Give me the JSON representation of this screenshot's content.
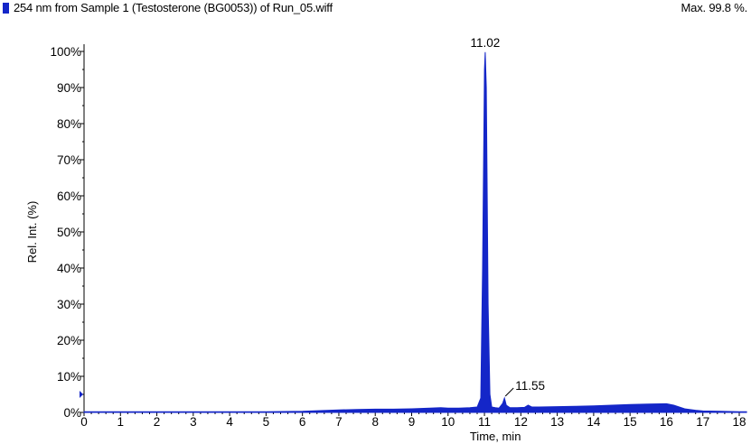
{
  "header": {
    "title": "254 nm from Sample 1 (Testosterone (BG0053)) of Run_05.wiff",
    "max": "Max. 99.8 %."
  },
  "colors": {
    "trace": "#1426c8",
    "axis": "#000000",
    "swatch": "#1426c8"
  },
  "chart_data": {
    "type": "line",
    "title": "254 nm from Sample 1 (Testosterone (BG0053)) of Run_05.wiff",
    "xlabel": "Time, min",
    "ylabel": "Rel. Int. (%)",
    "xlim": [
      0,
      18.2
    ],
    "ylim": [
      0,
      100
    ],
    "xticks": [
      0,
      1,
      2,
      3,
      4,
      5,
      6,
      7,
      8,
      9,
      10,
      11,
      12,
      13,
      14,
      15,
      16,
      17,
      18
    ],
    "yticks": [
      0,
      10,
      20,
      30,
      40,
      50,
      60,
      70,
      80,
      90,
      100
    ],
    "ytick_labels": [
      "0%",
      "10%",
      "20%",
      "30%",
      "40%",
      "50%",
      "60%",
      "70%",
      "80%",
      "90%",
      "100%"
    ],
    "grid": false,
    "peaks": [
      {
        "label": "11.02",
        "x": 11.02,
        "y": 99.8
      },
      {
        "label": "11.55",
        "x": 11.55,
        "y": 4.0
      }
    ],
    "series": [
      {
        "x": [
          0,
          1,
          2,
          3,
          4,
          5,
          6,
          6.5,
          7,
          7.5,
          8,
          8.5,
          9,
          9.5,
          9.8,
          10,
          10.3,
          10.6,
          10.8,
          10.9,
          10.95,
          11.0,
          11.02,
          11.05,
          11.1,
          11.15,
          11.2,
          11.3,
          11.4,
          11.5,
          11.55,
          11.6,
          11.7,
          11.9,
          12.1,
          12.2,
          12.3,
          12.5,
          13,
          13.5,
          14,
          14.5,
          15,
          15.5,
          16,
          16.2,
          16.5,
          16.8,
          17,
          17.5,
          18,
          18.2
        ],
        "y": [
          0.2,
          0.2,
          0.2,
          0.2,
          0.2,
          0.2,
          0.3,
          0.5,
          0.7,
          0.8,
          0.9,
          0.9,
          1.0,
          1.2,
          1.3,
          1.2,
          1.2,
          1.3,
          1.5,
          4,
          40,
          95,
          99.8,
          90,
          30,
          5,
          1.5,
          1.3,
          1.2,
          2.5,
          4.0,
          2.0,
          1.3,
          1.3,
          1.4,
          2.0,
          1.5,
          1.5,
          1.6,
          1.7,
          1.8,
          2.0,
          2.2,
          2.3,
          2.4,
          2.0,
          1.0,
          0.6,
          0.4,
          0.3,
          0.2,
          0.2
        ]
      }
    ],
    "marker": {
      "y": 5
    }
  }
}
